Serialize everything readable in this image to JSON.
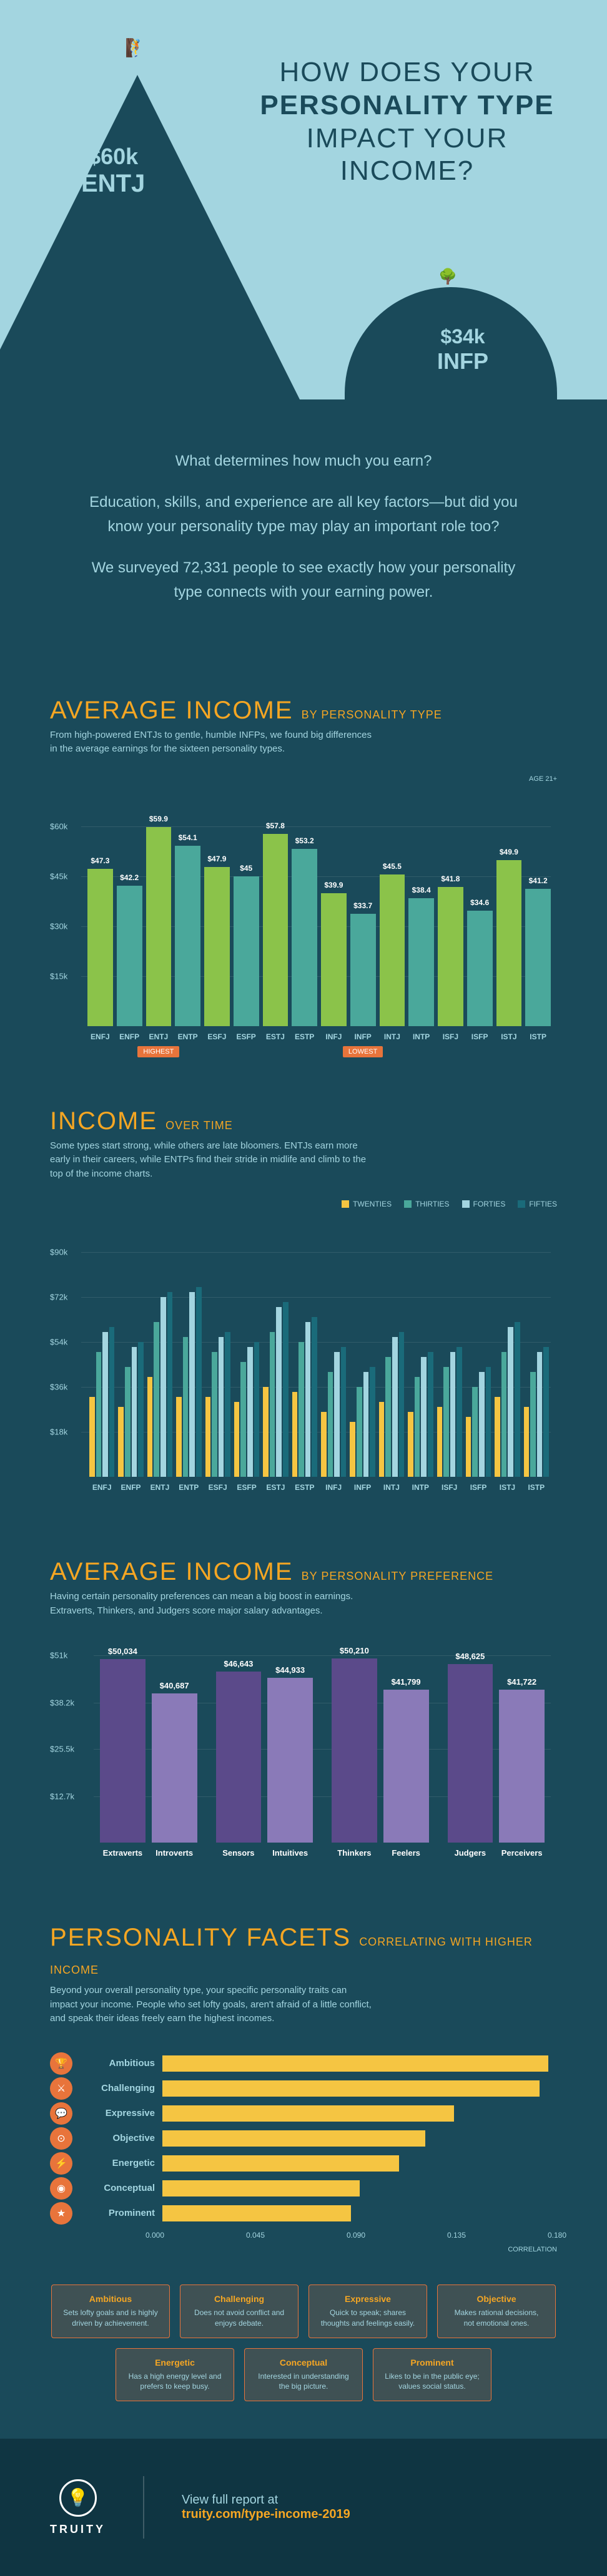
{
  "colors": {
    "bg": "#1a4a5a",
    "hero_bg": "#a3d5e0",
    "accent": "#f5a623",
    "orange": "#e8743b",
    "text_light": "#a3d5e0",
    "bar_green": "#8bc34a",
    "bar_teal": "#4aa89b",
    "bar_purple_dark": "#5b4a8a",
    "bar_purple_light": "#8a7ab8",
    "facet_bar": "#f5c542",
    "grid": "rgba(255,255,255,0.1)",
    "decades": {
      "twenties": "#f5c542",
      "thirties": "#4aa89b",
      "forties": "#a3d5e0",
      "fifties": "#1a6b7a"
    }
  },
  "hero": {
    "title_line1": "HOW DOES YOUR",
    "title_line2": "PERSONALITY TYPE",
    "title_line3": "IMPACT YOUR",
    "title_line4": "INCOME?",
    "entj_amount": "$60k",
    "entj_type": "ENTJ",
    "infp_amount": "$34k",
    "infp_type": "INFP"
  },
  "intro": {
    "p1": "What determines how much you earn?",
    "p2": "Education, skills, and experience are all key factors—but did you know your personality type may play an important role too?",
    "p3": "We surveyed 72,331 people to see exactly how your personality type connects with your earning power."
  },
  "avg_income": {
    "heading": "AVERAGE INCOME",
    "sub": "BY PERSONALITY TYPE",
    "desc": "From high-powered ENTJs to gentle, humble INFPs, we found big differences in the average earnings for the sixteen personality types.",
    "ylim": [
      0,
      60
    ],
    "yticks": [
      0,
      15,
      30,
      45,
      60
    ],
    "ytick_labels": [
      "",
      "$15k",
      "$30k",
      "$45k",
      "$60k"
    ],
    "types": [
      "ENFJ",
      "ENFP",
      "ENTJ",
      "ENTP",
      "ESFJ",
      "ESFP",
      "ESTJ",
      "ESTP",
      "INFJ",
      "INFP",
      "INTJ",
      "INTP",
      "ISFJ",
      "ISFP",
      "ISTJ",
      "ISTP"
    ],
    "values": [
      47.3,
      42.2,
      59.9,
      54.1,
      47.9,
      45,
      57.8,
      53.2,
      39.9,
      33.7,
      45.5,
      38.4,
      41.8,
      34.6,
      49.9,
      41.2
    ],
    "value_labels": [
      "$47.3",
      "$42.2",
      "$59.9",
      "$54.1",
      "$47.9",
      "$45",
      "$57.8",
      "$53.2",
      "$39.9",
      "$33.7",
      "$45.5",
      "$38.4",
      "$41.8",
      "$34.6",
      "$49.9",
      "$41.2"
    ],
    "highlight_highest": {
      "index": 2,
      "label": "HIGHEST"
    },
    "highlight_lowest": {
      "index": 9,
      "label": "LOWEST"
    },
    "age_note": "AGE 21+"
  },
  "income_time": {
    "heading": "INCOME",
    "sub": "OVER TIME",
    "desc": "Some types start strong, while others are late bloomers. ENTJs earn more early in their careers, while ENTPs find their stride in midlife and climb to the top of the income charts.",
    "legend": [
      "TWENTIES",
      "THIRTIES",
      "FORTIES",
      "FIFTIES"
    ],
    "ylim": [
      0,
      90
    ],
    "yticks": [
      0,
      18,
      36,
      54,
      72,
      90
    ],
    "ytick_labels": [
      "",
      "$18k",
      "$36k",
      "$54k",
      "$72k",
      "$90k"
    ],
    "types": [
      "ENFJ",
      "ENFP",
      "ENTJ",
      "ENTP",
      "ESFJ",
      "ESFP",
      "ESTJ",
      "ESTP",
      "INFJ",
      "INFP",
      "INTJ",
      "INTP",
      "ISFJ",
      "ISFP",
      "ISTJ",
      "ISTP"
    ],
    "data": [
      [
        32,
        50,
        58,
        60
      ],
      [
        28,
        44,
        52,
        54
      ],
      [
        40,
        62,
        72,
        74
      ],
      [
        32,
        56,
        74,
        76
      ],
      [
        32,
        50,
        56,
        58
      ],
      [
        30,
        46,
        52,
        54
      ],
      [
        36,
        58,
        68,
        70
      ],
      [
        34,
        54,
        62,
        64
      ],
      [
        26,
        42,
        50,
        52
      ],
      [
        22,
        36,
        42,
        44
      ],
      [
        30,
        48,
        56,
        58
      ],
      [
        26,
        40,
        48,
        50
      ],
      [
        28,
        44,
        50,
        52
      ],
      [
        24,
        36,
        42,
        44
      ],
      [
        32,
        50,
        60,
        62
      ],
      [
        28,
        42,
        50,
        52
      ]
    ]
  },
  "pref": {
    "heading": "AVERAGE INCOME",
    "sub": "BY PERSONALITY PREFERENCE",
    "desc": "Having certain personality preferences can mean a big boost in earnings. Extraverts, Thinkers, and Judgers score major salary advantages.",
    "ylim": [
      0,
      51
    ],
    "yticks": [
      0,
      12.7,
      25.5,
      38.2,
      51
    ],
    "ytick_labels": [
      "",
      "$12.7k",
      "$25.5k",
      "$38.2k",
      "$51k"
    ],
    "pairs": [
      {
        "a": {
          "label": "Extraverts",
          "value": 50034,
          "display": "$50,034"
        },
        "b": {
          "label": "Introverts",
          "value": 40687,
          "display": "$40,687"
        }
      },
      {
        "a": {
          "label": "Sensors",
          "value": 46643,
          "display": "$46,643"
        },
        "b": {
          "label": "Intuitives",
          "value": 44933,
          "display": "$44,933"
        }
      },
      {
        "a": {
          "label": "Thinkers",
          "value": 50210,
          "display": "$50,210"
        },
        "b": {
          "label": "Feelers",
          "value": 41799,
          "display": "$41,799"
        }
      },
      {
        "a": {
          "label": "Judgers",
          "value": 48625,
          "display": "$48,625"
        },
        "b": {
          "label": "Perceivers",
          "value": 41722,
          "display": "$41,722"
        }
      }
    ]
  },
  "facets": {
    "heading": "PERSONALITY FACETS",
    "sub": "CORRELATING WITH HIGHER INCOME",
    "desc": "Beyond your overall personality type, your specific personality traits can impact your income. People who set lofty goals, aren't afraid of a little conflict, and speak their ideas freely earn the highest incomes.",
    "xlim": [
      0,
      0.18
    ],
    "xticks": [
      0.0,
      0.045,
      0.09,
      0.135,
      0.18
    ],
    "xtick_labels": [
      "0.000",
      "0.045",
      "0.090",
      "0.135",
      "0.180"
    ],
    "xlabel": "CORRELATION",
    "items": [
      {
        "label": "Ambitious",
        "value": 0.176,
        "icon": "🏆"
      },
      {
        "label": "Challenging",
        "value": 0.172,
        "icon": "⚔"
      },
      {
        "label": "Expressive",
        "value": 0.133,
        "icon": "💬"
      },
      {
        "label": "Objective",
        "value": 0.12,
        "icon": "⊙"
      },
      {
        "label": "Energetic",
        "value": 0.108,
        "icon": "⚡"
      },
      {
        "label": "Conceptual",
        "value": 0.09,
        "icon": "◉"
      },
      {
        "label": "Prominent",
        "value": 0.086,
        "icon": "★"
      }
    ],
    "boxes": [
      {
        "title": "Ambitious",
        "desc": "Sets lofty goals and is highly driven by achievement."
      },
      {
        "title": "Challenging",
        "desc": "Does not avoid conflict and enjoys debate."
      },
      {
        "title": "Expressive",
        "desc": "Quick to speak; shares thoughts and feelings easily."
      },
      {
        "title": "Objective",
        "desc": "Makes rational decisions, not emotional ones."
      },
      {
        "title": "Energetic",
        "desc": "Has a high energy level and prefers to keep busy."
      },
      {
        "title": "Conceptual",
        "desc": "Interested in understanding the big picture."
      },
      {
        "title": "Prominent",
        "desc": "Likes to be in the public eye; values social status."
      }
    ]
  },
  "footer": {
    "brand": "TRUITY",
    "text": "View full report at",
    "link": "truity.com/type-income-2019"
  }
}
